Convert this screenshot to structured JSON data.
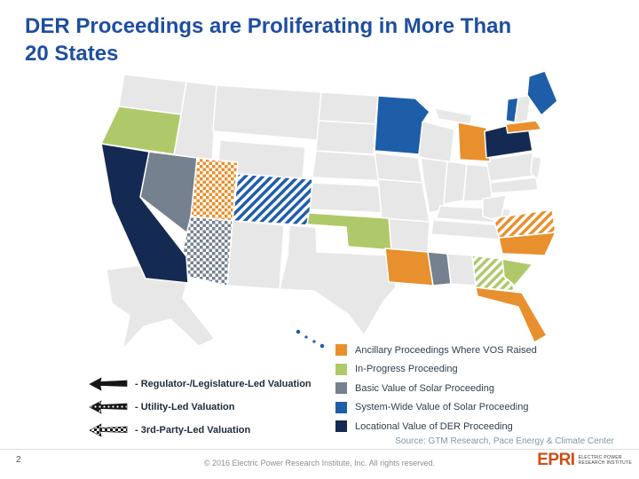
{
  "slide": {
    "title_line1": "DER Proceedings are Proliferating in More Than",
    "title_line2": "20 States",
    "page_number": "2",
    "source_text": "Source: GTM Research, Pace Energy & Climate Center",
    "footer_text": "© 2016 Electric Power Research Institute, Inc. All rights reserved."
  },
  "colors": {
    "title": "#1F4E9F",
    "slide_background": "#FFFFFF"
  },
  "legend": {
    "categories": [
      {
        "key": "ancillary",
        "label": "Ancillary Proceedings Where VOS Raised",
        "color": "#E8902E"
      },
      {
        "key": "in_progress",
        "label": "In-Progress Proceeding",
        "color": "#AFC96A"
      },
      {
        "key": "basic",
        "label": "Basic Value of Solar Proceeding",
        "color": "#75818F"
      },
      {
        "key": "system_wide",
        "label": "System-Wide Value of Solar Proceeding",
        "color": "#1E5EA9"
      },
      {
        "key": "locational",
        "label": "Locational Value of DER Proceeding",
        "color": "#152A52"
      }
    ],
    "patterns": [
      {
        "label": "- Regulator-/Legislature-Led Valuation",
        "style": "solid"
      },
      {
        "label": "- Utility-Led Valuation",
        "style": "dots"
      },
      {
        "label": "- 3rd-Party-Led Valuation",
        "style": "checker"
      }
    ]
  },
  "map": {
    "default_fill": "#E7E7E7",
    "border_color": "#FFFFFF",
    "states": [
      {
        "abbr": "CA",
        "name": "California",
        "category": "locational",
        "style": "solid"
      },
      {
        "abbr": "NY",
        "name": "New York",
        "category": "locational",
        "style": "solid"
      },
      {
        "abbr": "OR",
        "name": "Oregon",
        "category": "in_progress",
        "style": "solid"
      },
      {
        "abbr": "OK",
        "name": "Oklahoma",
        "category": "in_progress",
        "style": "solid"
      },
      {
        "abbr": "SC",
        "name": "South Carolina",
        "category": "in_progress",
        "style": "solid"
      },
      {
        "abbr": "GA",
        "name": "Georgia",
        "category": "in_progress",
        "style": "hatch"
      },
      {
        "abbr": "NV",
        "name": "Nevada",
        "category": "basic",
        "style": "solid"
      },
      {
        "abbr": "MS",
        "name": "Mississippi",
        "category": "basic",
        "style": "solid"
      },
      {
        "abbr": "AZ",
        "name": "Arizona",
        "category": "basic",
        "style": "checker"
      },
      {
        "abbr": "MN",
        "name": "Minnesota",
        "category": "system_wide",
        "style": "solid"
      },
      {
        "abbr": "VT",
        "name": "Vermont",
        "category": "system_wide",
        "style": "solid"
      },
      {
        "abbr": "ME",
        "name": "Maine",
        "category": "system_wide",
        "style": "solid"
      },
      {
        "abbr": "HI",
        "name": "Hawaii",
        "category": "system_wide",
        "style": "solid"
      },
      {
        "abbr": "CO",
        "name": "Colorado",
        "category": "system_wide",
        "style": "hatch"
      },
      {
        "abbr": "UT",
        "name": "Utah",
        "category": "ancillary",
        "style": "checker"
      },
      {
        "abbr": "MI",
        "name": "Michigan",
        "category": "ancillary",
        "style": "solid"
      },
      {
        "abbr": "LA",
        "name": "Louisiana",
        "category": "ancillary",
        "style": "solid"
      },
      {
        "abbr": "FL",
        "name": "Florida",
        "category": "ancillary",
        "style": "solid"
      },
      {
        "abbr": "NC",
        "name": "North Carolina",
        "category": "ancillary",
        "style": "solid"
      },
      {
        "abbr": "MA",
        "name": "Massachusetts",
        "category": "ancillary",
        "style": "solid"
      },
      {
        "abbr": "VA",
        "name": "Virginia",
        "category": "ancillary",
        "style": "hatch"
      }
    ]
  },
  "logo": {
    "name": "EPRI",
    "tagline_line1": "ELECTRIC POWER",
    "tagline_line2": "RESEARCH INSTITUTE"
  }
}
